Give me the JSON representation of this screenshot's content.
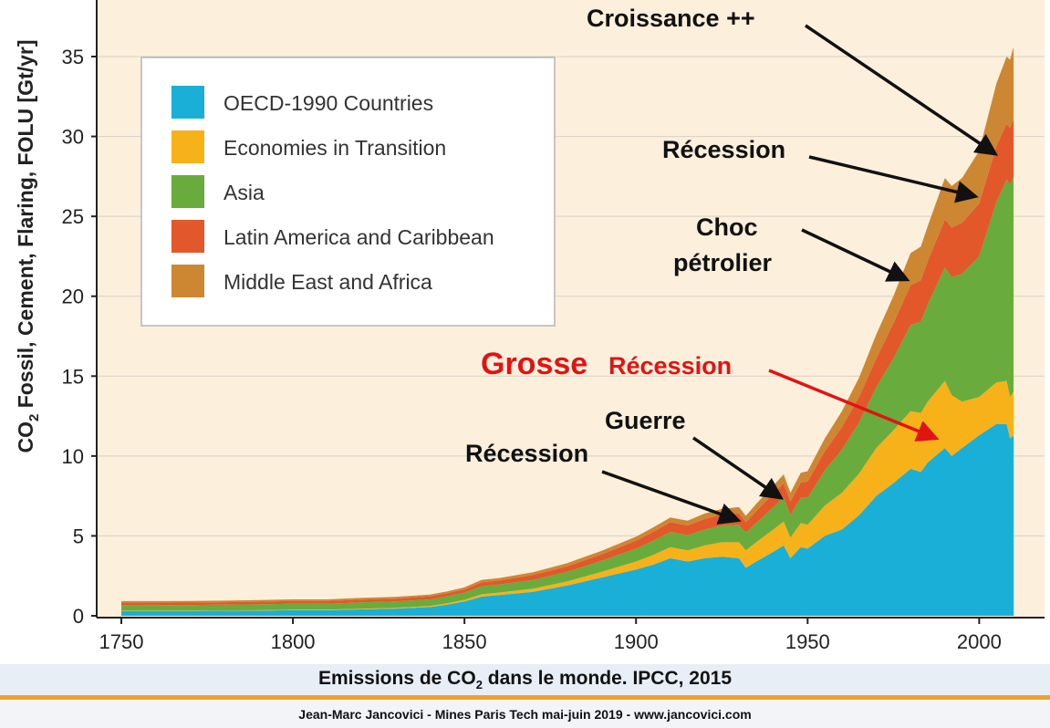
{
  "chart_data": {
    "type": "area",
    "stacked": true,
    "ylabel": "CO2 Fossil, Cement, Flaring, FOLU [Gt/yr]",
    "ylabel_parts": {
      "pre": "CO",
      "sub": "2",
      "post": " Fossil, Cement, Flaring, FOLU [Gt/yr]"
    },
    "xlim": [
      1750,
      2010
    ],
    "ylim": [
      0,
      38
    ],
    "x_ticks": [
      1750,
      1800,
      1850,
      1900,
      1950,
      2000
    ],
    "y_ticks": [
      0,
      5,
      10,
      15,
      20,
      25,
      30,
      35
    ],
    "grid": true,
    "legend_position": "top-left",
    "x": [
      1750,
      1760,
      1770,
      1780,
      1790,
      1800,
      1810,
      1820,
      1830,
      1840,
      1845,
      1850,
      1855,
      1860,
      1870,
      1880,
      1890,
      1900,
      1905,
      1910,
      1915,
      1920,
      1925,
      1930,
      1932,
      1935,
      1940,
      1943,
      1945,
      1948,
      1950,
      1955,
      1960,
      1965,
      1970,
      1975,
      1980,
      1983,
      1985,
      1990,
      1992,
      1995,
      2000,
      2005,
      2008,
      2009,
      2010
    ],
    "series": [
      {
        "name": "OECD-1990 Countries",
        "color": "#1aafd6",
        "values": [
          0.3,
          0.3,
          0.3,
          0.32,
          0.32,
          0.35,
          0.35,
          0.4,
          0.45,
          0.55,
          0.7,
          0.9,
          1.2,
          1.3,
          1.5,
          1.9,
          2.4,
          2.9,
          3.2,
          3.6,
          3.4,
          3.6,
          3.7,
          3.6,
          3.0,
          3.4,
          4.0,
          4.4,
          3.6,
          4.3,
          4.2,
          5.0,
          5.4,
          6.3,
          7.5,
          8.3,
          9.2,
          9.0,
          9.6,
          10.5,
          10.0,
          10.5,
          11.3,
          12.0,
          12.0,
          11.1,
          11.3
        ]
      },
      {
        "name": "Economies in Transition",
        "color": "#f7b219",
        "values": [
          0.02,
          0.02,
          0.02,
          0.02,
          0.03,
          0.03,
          0.03,
          0.04,
          0.05,
          0.06,
          0.08,
          0.1,
          0.15,
          0.15,
          0.2,
          0.25,
          0.35,
          0.5,
          0.6,
          0.7,
          0.7,
          0.8,
          0.9,
          1.0,
          1.1,
          1.2,
          1.4,
          1.5,
          1.3,
          1.5,
          1.5,
          1.9,
          2.3,
          2.6,
          3.0,
          3.3,
          3.6,
          3.7,
          3.8,
          4.2,
          3.8,
          2.9,
          2.4,
          2.6,
          2.7,
          2.6,
          2.7
        ]
      },
      {
        "name": "Asia",
        "color": "#6aab3e",
        "values": [
          0.35,
          0.35,
          0.36,
          0.36,
          0.37,
          0.38,
          0.38,
          0.4,
          0.4,
          0.42,
          0.45,
          0.45,
          0.5,
          0.5,
          0.55,
          0.6,
          0.7,
          0.8,
          0.9,
          0.95,
          0.95,
          1.0,
          1.05,
          1.1,
          1.1,
          1.2,
          1.4,
          1.5,
          1.4,
          1.6,
          1.7,
          2.2,
          2.7,
          3.2,
          3.8,
          4.5,
          5.4,
          5.7,
          6.1,
          7.1,
          7.4,
          8.0,
          8.8,
          11.3,
          12.6,
          13.3,
          13.5
        ]
      },
      {
        "name": "Latin America and Caribbean",
        "color": "#e2582a",
        "values": [
          0.15,
          0.15,
          0.15,
          0.15,
          0.16,
          0.17,
          0.17,
          0.17,
          0.18,
          0.18,
          0.18,
          0.2,
          0.25,
          0.25,
          0.3,
          0.35,
          0.4,
          0.5,
          0.55,
          0.6,
          0.6,
          0.65,
          0.7,
          0.7,
          0.65,
          0.75,
          0.85,
          0.9,
          0.85,
          0.95,
          1.0,
          1.2,
          1.4,
          1.6,
          1.8,
          2.2,
          2.5,
          2.6,
          2.7,
          3.0,
          3.1,
          3.2,
          3.3,
          3.5,
          3.5,
          3.5,
          3.6
        ]
      },
      {
        "name": "Middle East and Africa",
        "color": "#cd8631",
        "values": [
          0.1,
          0.1,
          0.1,
          0.1,
          0.1,
          0.1,
          0.1,
          0.11,
          0.11,
          0.12,
          0.12,
          0.13,
          0.15,
          0.15,
          0.18,
          0.2,
          0.22,
          0.25,
          0.28,
          0.3,
          0.3,
          0.35,
          0.35,
          0.4,
          0.4,
          0.45,
          0.5,
          0.55,
          0.55,
          0.6,
          0.65,
          0.8,
          1.0,
          1.2,
          1.5,
          1.7,
          2.0,
          2.1,
          2.2,
          2.6,
          2.6,
          2.8,
          3.3,
          3.9,
          4.2,
          4.3,
          4.5
        ]
      }
    ],
    "annotations": [
      {
        "text": "Croissance ++",
        "color": "#111111",
        "size": 27,
        "ax": 1090,
        "ay": 168
      },
      {
        "text": "Récession",
        "color": "#111111",
        "size": 27,
        "ax": 1068,
        "ay": 215
      },
      {
        "text": "Choc",
        "color": "#111111",
        "size": 27,
        "ax": 0,
        "ay": 0
      },
      {
        "text": "pétrolier",
        "color": "#111111",
        "size": 27,
        "ax": 993,
        "ay": 306
      },
      {
        "text": "Grosse",
        "color": "#e31313",
        "size": 34,
        "ax": 0,
        "ay": 0
      },
      {
        "text": "Récession",
        "color": "#e31313",
        "size": 27,
        "ax": 1025,
        "ay": 480
      },
      {
        "text": "Guerre",
        "color": "#111111",
        "size": 27,
        "ax": 855,
        "ay": 545
      },
      {
        "text": "Récession",
        "color": "#111111",
        "size": 27,
        "ax": 808,
        "ay": 570
      }
    ]
  },
  "caption": {
    "title_pre": "Emissions de CO",
    "title_sub": "2",
    "title_post": " dans le monde. IPCC, 2015",
    "credit": "Jean-Marc Jancovici - Mines Paris Tech mai-juin 2019 - www.jancovici.com"
  },
  "colors": {
    "background": "#fcf0dc",
    "grid": "#d8d0c4",
    "axis": "#222222"
  }
}
